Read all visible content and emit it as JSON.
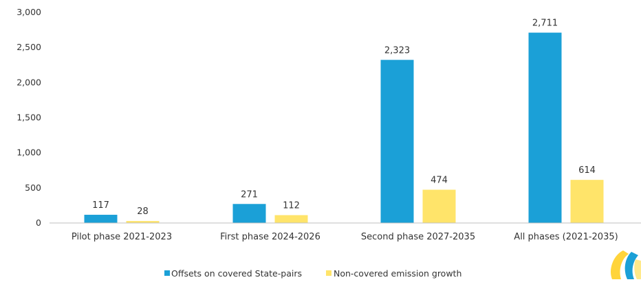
{
  "chart_data": {
    "type": "bar",
    "title": "",
    "xlabel": "",
    "ylabel": "",
    "categories": [
      "Pilot phase 2021-2023",
      "First phase 2024-2026",
      "Second phase 2027-2035",
      "All phases (2021-2035)"
    ],
    "series": [
      {
        "name": "Offsets on covered State-pairs",
        "color": "#1ba0d7",
        "values": [
          117,
          271,
          2323,
          2711
        ],
        "labels": [
          "117",
          "271",
          "2,323",
          "2,711"
        ]
      },
      {
        "name": "Non-covered emission growth",
        "color": "#ffe46a",
        "values": [
          28,
          112,
          474,
          614
        ],
        "labels": [
          "28",
          "112",
          "474",
          "614"
        ]
      }
    ],
    "ylim": [
      0,
      3000
    ],
    "yticks": [
      0,
      500,
      1000,
      1500,
      2000,
      2500,
      3000
    ],
    "ytick_labels": [
      "0",
      "500",
      "1,000",
      "1,500",
      "2,000",
      "2,500",
      "3,000"
    ],
    "grid": false,
    "legend_position": "bottom"
  }
}
